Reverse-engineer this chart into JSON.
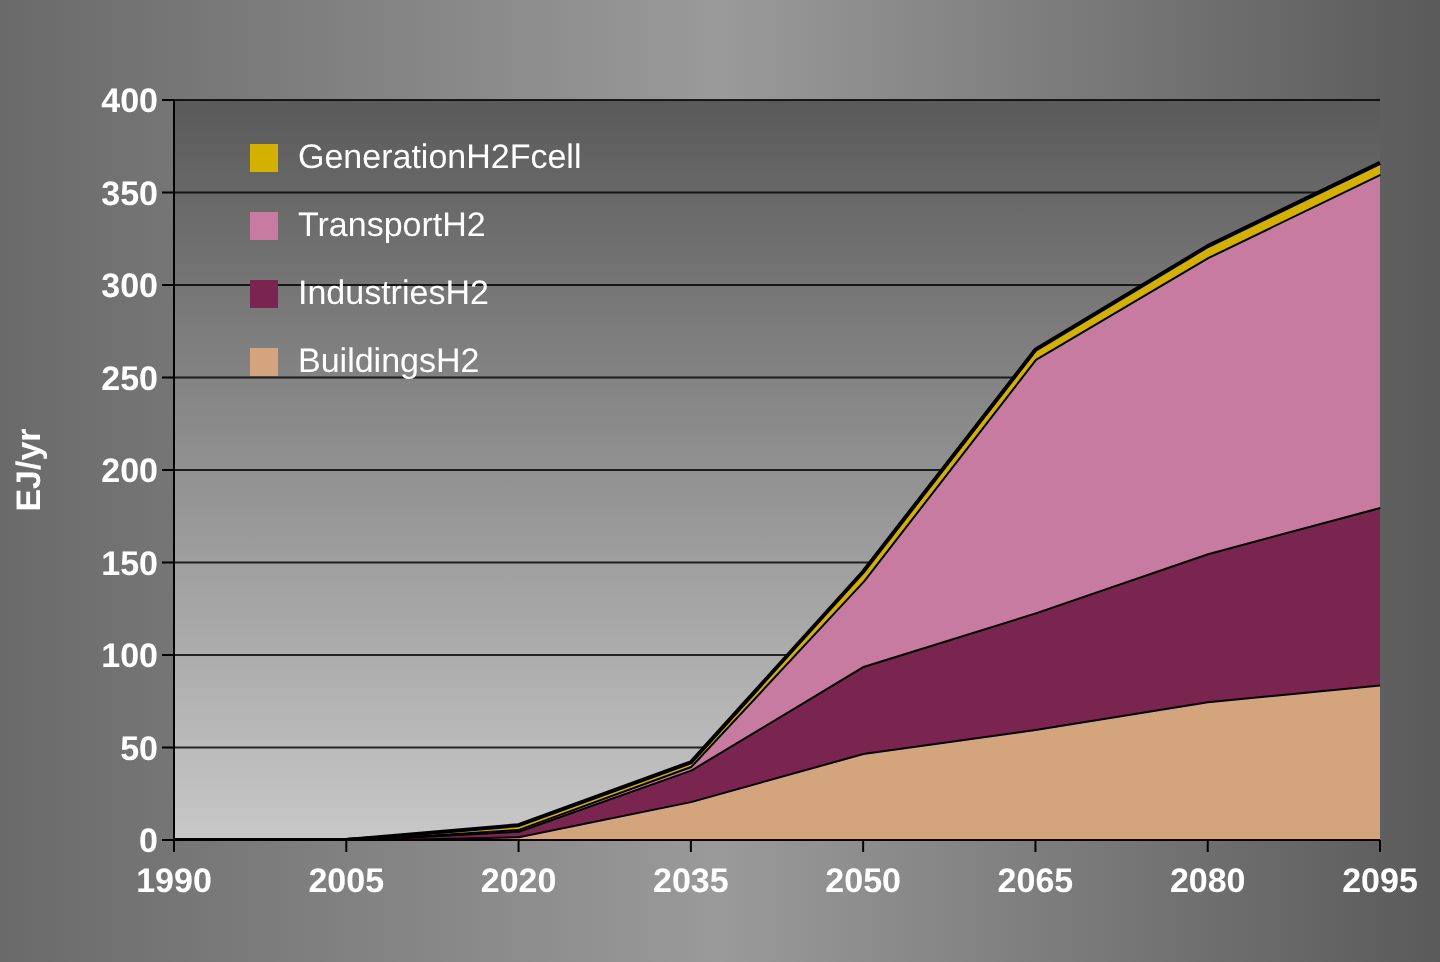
{
  "chart_data": {
    "type": "area",
    "stacked": true,
    "ylabel": "EJ/yr",
    "categories": [
      "1990",
      "2005",
      "2020",
      "2035",
      "2050",
      "2065",
      "2080",
      "2095"
    ],
    "series": [
      {
        "name": "BuildingsH2",
        "color": "#d4a57c",
        "values": [
          0,
          0,
          2,
          21,
          47,
          60,
          75,
          84
        ]
      },
      {
        "name": "IndustriesH2",
        "color": "#7a2450",
        "values": [
          0,
          0,
          3,
          17,
          47,
          63,
          80,
          96
        ]
      },
      {
        "name": "TransportH2",
        "color": "#c87ba0",
        "values": [
          0,
          0,
          1,
          2,
          46,
          137,
          160,
          180
        ]
      },
      {
        "name": "GenerationH2Fcell",
        "color": "#d4b000",
        "values": [
          0,
          0,
          2,
          2,
          5,
          5,
          6,
          6
        ]
      }
    ],
    "ylim": [
      0,
      400
    ],
    "yticks": [
      0,
      50,
      100,
      150,
      200,
      250,
      300,
      350,
      400
    ],
    "grid": "y",
    "legend": "top left"
  }
}
